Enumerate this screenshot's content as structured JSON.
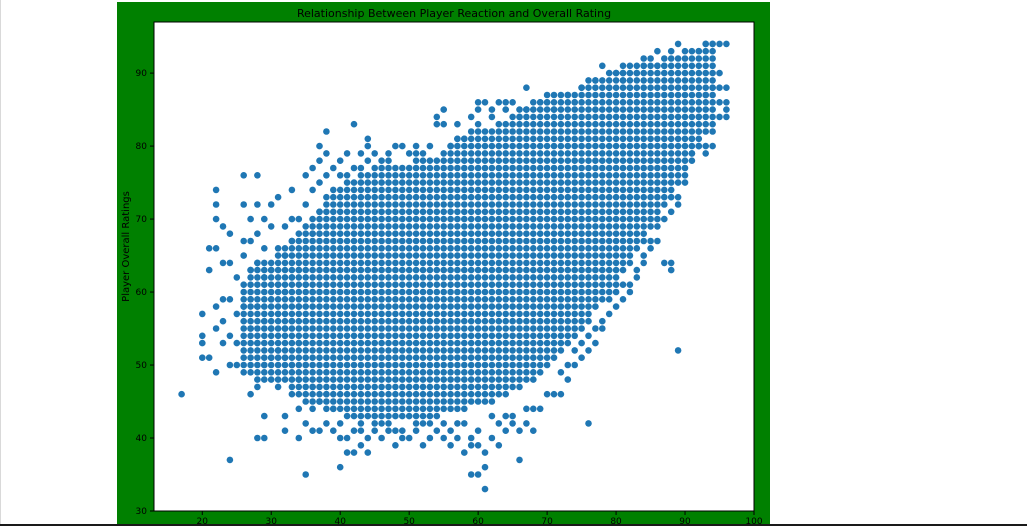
{
  "figure": {
    "background": "#008000"
  },
  "chart_data": {
    "type": "scatter",
    "title": "Relationship Between Player Reaction and Overall Rating",
    "xlabel": "",
    "ylabel": "Player Overall Ratings",
    "xlim": [
      13,
      100
    ],
    "ylim": [
      30,
      97
    ],
    "xticks": [
      20,
      30,
      40,
      50,
      60,
      70,
      80,
      90,
      100
    ],
    "yticks": [
      30,
      40,
      50,
      60,
      70,
      80,
      90
    ],
    "marker_color": "#1f77b4",
    "grid": false,
    "band": [
      [
        26,
        50,
        61
      ],
      [
        28,
        48,
        64
      ],
      [
        30,
        48,
        64
      ],
      [
        32,
        48,
        66
      ],
      [
        34,
        46,
        68
      ],
      [
        36,
        45,
        70
      ],
      [
        38,
        44,
        72
      ],
      [
        40,
        44,
        74
      ],
      [
        42,
        43,
        75
      ],
      [
        44,
        43,
        76
      ],
      [
        46,
        43,
        77
      ],
      [
        48,
        43,
        77
      ],
      [
        50,
        43,
        77
      ],
      [
        52,
        43,
        78
      ],
      [
        54,
        43,
        78
      ],
      [
        56,
        44,
        80
      ],
      [
        58,
        44,
        81
      ],
      [
        60,
        45,
        82
      ],
      [
        62,
        45,
        82
      ],
      [
        64,
        46,
        83
      ],
      [
        66,
        47,
        84
      ],
      [
        68,
        48,
        85
      ],
      [
        70,
        50,
        86
      ],
      [
        72,
        52,
        86
      ],
      [
        74,
        54,
        87
      ],
      [
        76,
        56,
        88
      ],
      [
        78,
        59,
        89
      ],
      [
        80,
        61,
        90
      ],
      [
        82,
        64,
        91
      ],
      [
        84,
        67,
        91
      ],
      [
        86,
        70,
        91
      ],
      [
        88,
        73,
        92
      ],
      [
        90,
        77,
        92
      ],
      [
        92,
        80,
        93
      ],
      [
        94,
        83,
        94
      ]
    ],
    "points": [
      [
        17,
        46
      ],
      [
        20,
        51
      ],
      [
        20,
        53
      ],
      [
        20,
        54
      ],
      [
        20,
        57
      ],
      [
        21,
        51
      ],
      [
        21,
        63
      ],
      [
        21,
        66
      ],
      [
        22,
        49
      ],
      [
        22,
        55
      ],
      [
        22,
        58
      ],
      [
        22,
        66
      ],
      [
        22,
        70
      ],
      [
        22,
        72
      ],
      [
        22,
        74
      ],
      [
        23,
        53
      ],
      [
        23,
        56
      ],
      [
        23,
        59
      ],
      [
        23,
        64
      ],
      [
        23,
        69
      ],
      [
        24,
        37
      ],
      [
        24,
        50
      ],
      [
        24,
        54
      ],
      [
        24,
        59
      ],
      [
        24,
        64
      ],
      [
        24,
        68
      ],
      [
        25,
        50
      ],
      [
        25,
        53
      ],
      [
        25,
        57
      ],
      [
        25,
        62
      ],
      [
        26,
        49
      ],
      [
        26,
        58
      ],
      [
        26,
        65
      ],
      [
        26,
        67
      ],
      [
        26,
        72
      ],
      [
        26,
        76
      ],
      [
        27,
        46
      ],
      [
        27,
        55
      ],
      [
        27,
        59
      ],
      [
        27,
        63
      ],
      [
        27,
        67
      ],
      [
        27,
        70
      ],
      [
        28,
        40
      ],
      [
        28,
        47
      ],
      [
        28,
        53
      ],
      [
        28,
        58
      ],
      [
        28,
        64
      ],
      [
        28,
        68
      ],
      [
        28,
        72
      ],
      [
        28,
        76
      ],
      [
        29,
        40
      ],
      [
        29,
        43
      ],
      [
        29,
        50
      ],
      [
        29,
        56
      ],
      [
        29,
        62
      ],
      [
        29,
        66
      ],
      [
        29,
        70
      ],
      [
        30,
        51
      ],
      [
        30,
        55
      ],
      [
        30,
        59
      ],
      [
        30,
        63
      ],
      [
        30,
        69
      ],
      [
        30,
        72
      ],
      [
        31,
        47
      ],
      [
        31,
        52
      ],
      [
        31,
        57
      ],
      [
        31,
        61
      ],
      [
        31,
        66
      ],
      [
        31,
        73
      ],
      [
        32,
        41
      ],
      [
        32,
        43
      ],
      [
        32,
        51
      ],
      [
        32,
        55
      ],
      [
        32,
        60
      ],
      [
        32,
        65
      ],
      [
        32,
        69
      ],
      [
        33,
        46
      ],
      [
        33,
        50
      ],
      [
        33,
        56
      ],
      [
        33,
        62
      ],
      [
        33,
        67
      ],
      [
        33,
        70
      ],
      [
        33,
        74
      ],
      [
        34,
        40
      ],
      [
        34,
        44
      ],
      [
        34,
        48
      ],
      [
        34,
        53
      ],
      [
        34,
        58
      ],
      [
        34,
        63
      ],
      [
        34,
        70
      ],
      [
        35,
        35
      ],
      [
        35,
        42
      ],
      [
        35,
        45
      ],
      [
        35,
        50
      ],
      [
        35,
        56
      ],
      [
        35,
        61
      ],
      [
        35,
        66
      ],
      [
        35,
        72
      ],
      [
        35,
        76
      ],
      [
        36,
        41
      ],
      [
        36,
        44
      ],
      [
        36,
        47
      ],
      [
        36,
        60
      ],
      [
        36,
        68
      ],
      [
        36,
        74
      ],
      [
        36,
        77
      ],
      [
        37,
        41
      ],
      [
        37,
        45
      ],
      [
        37,
        71
      ],
      [
        37,
        75
      ],
      [
        37,
        78
      ],
      [
        37,
        80
      ],
      [
        38,
        42
      ],
      [
        38,
        46
      ],
      [
        38,
        73
      ],
      [
        38,
        76
      ],
      [
        38,
        79
      ],
      [
        38,
        82
      ],
      [
        39,
        41
      ],
      [
        39,
        44
      ],
      [
        39,
        74
      ],
      [
        39,
        77
      ],
      [
        40,
        36
      ],
      [
        40,
        40
      ],
      [
        40,
        42
      ],
      [
        40,
        76
      ],
      [
        40,
        78
      ],
      [
        41,
        38
      ],
      [
        41,
        40
      ],
      [
        41,
        43
      ],
      [
        41,
        76
      ],
      [
        41,
        79
      ],
      [
        42,
        38
      ],
      [
        42,
        41
      ],
      [
        42,
        77
      ],
      [
        42,
        83
      ],
      [
        43,
        39
      ],
      [
        43,
        41
      ],
      [
        43,
        42
      ],
      [
        43,
        77
      ],
      [
        43,
        79
      ],
      [
        44,
        38
      ],
      [
        44,
        40
      ],
      [
        44,
        78
      ],
      [
        44,
        80
      ],
      [
        44,
        81
      ],
      [
        45,
        41
      ],
      [
        45,
        42
      ],
      [
        45,
        79
      ],
      [
        46,
        40
      ],
      [
        46,
        42
      ],
      [
        46,
        78
      ],
      [
        47,
        41
      ],
      [
        47,
        42
      ],
      [
        47,
        78
      ],
      [
        47,
        79
      ],
      [
        48,
        39
      ],
      [
        48,
        41
      ],
      [
        48,
        80
      ],
      [
        49,
        40
      ],
      [
        49,
        41
      ],
      [
        49,
        80
      ],
      [
        50,
        40
      ],
      [
        50,
        79
      ],
      [
        51,
        41
      ],
      [
        51,
        42
      ],
      [
        51,
        79
      ],
      [
        51,
        80
      ],
      [
        52,
        39
      ],
      [
        52,
        42
      ],
      [
        52,
        79
      ],
      [
        53,
        40
      ],
      [
        53,
        42
      ],
      [
        53,
        80
      ],
      [
        54,
        41
      ],
      [
        54,
        83
      ],
      [
        54,
        84
      ],
      [
        55,
        40
      ],
      [
        55,
        42
      ],
      [
        55,
        83
      ],
      [
        55,
        85
      ],
      [
        56,
        39
      ],
      [
        56,
        41
      ],
      [
        56,
        80
      ],
      [
        57,
        40
      ],
      [
        57,
        42
      ],
      [
        57,
        81
      ],
      [
        57,
        83
      ],
      [
        58,
        38
      ],
      [
        58,
        42
      ],
      [
        58,
        81
      ],
      [
        59,
        35
      ],
      [
        59,
        39
      ],
      [
        59,
        40
      ],
      [
        59,
        84
      ],
      [
        60,
        35
      ],
      [
        60,
        39
      ],
      [
        60,
        41
      ],
      [
        60,
        83
      ],
      [
        60,
        85
      ],
      [
        60,
        86
      ],
      [
        61,
        36
      ],
      [
        61,
        38
      ],
      [
        61,
        33
      ],
      [
        61,
        86
      ],
      [
        62,
        40
      ],
      [
        62,
        43
      ],
      [
        62,
        84
      ],
      [
        62,
        85
      ],
      [
        63,
        39
      ],
      [
        63,
        42
      ],
      [
        63,
        86
      ],
      [
        64,
        41
      ],
      [
        64,
        43
      ],
      [
        64,
        85
      ],
      [
        64,
        86
      ],
      [
        65,
        42
      ],
      [
        65,
        43
      ],
      [
        65,
        86
      ],
      [
        66,
        37
      ],
      [
        66,
        41
      ],
      [
        66,
        84
      ],
      [
        66,
        85
      ],
      [
        67,
        42
      ],
      [
        67,
        44
      ],
      [
        67,
        85
      ],
      [
        67,
        88
      ],
      [
        68,
        41
      ],
      [
        68,
        44
      ],
      [
        68,
        86
      ],
      [
        69,
        44
      ],
      [
        69,
        86
      ],
      [
        70,
        46
      ],
      [
        70,
        86
      ],
      [
        70,
        87
      ],
      [
        71,
        46
      ],
      [
        71,
        85
      ],
      [
        71,
        87
      ],
      [
        72,
        46
      ],
      [
        72,
        49
      ],
      [
        72,
        87
      ],
      [
        73,
        48
      ],
      [
        73,
        50
      ],
      [
        73,
        87
      ],
      [
        74,
        50
      ],
      [
        74,
        52
      ],
      [
        74,
        86
      ],
      [
        75,
        51
      ],
      [
        75,
        53
      ],
      [
        75,
        88
      ],
      [
        76,
        42
      ],
      [
        76,
        52
      ],
      [
        76,
        54
      ],
      [
        76,
        89
      ],
      [
        77,
        53
      ],
      [
        77,
        55
      ],
      [
        77,
        89
      ],
      [
        78,
        55
      ],
      [
        78,
        56
      ],
      [
        78,
        91
      ],
      [
        79,
        57
      ],
      [
        79,
        59
      ],
      [
        79,
        88
      ],
      [
        80,
        58
      ],
      [
        80,
        60
      ],
      [
        80,
        90
      ],
      [
        81,
        59
      ],
      [
        81,
        61
      ],
      [
        81,
        89
      ],
      [
        81,
        90
      ],
      [
        82,
        60
      ],
      [
        82,
        61
      ],
      [
        82,
        88
      ],
      [
        83,
        62
      ],
      [
        83,
        63
      ],
      [
        83,
        90
      ],
      [
        84,
        64
      ],
      [
        84,
        65
      ],
      [
        84,
        91
      ],
      [
        84,
        92
      ],
      [
        85,
        66
      ],
      [
        85,
        67
      ],
      [
        85,
        92
      ],
      [
        86,
        67
      ],
      [
        86,
        69
      ],
      [
        86,
        91
      ],
      [
        86,
        93
      ],
      [
        87,
        64
      ],
      [
        87,
        70
      ],
      [
        87,
        91
      ],
      [
        88,
        63
      ],
      [
        88,
        64
      ],
      [
        88,
        71
      ],
      [
        88,
        93
      ],
      [
        89,
        52
      ],
      [
        89,
        72
      ],
      [
        89,
        73
      ],
      [
        89,
        94
      ],
      [
        90,
        75
      ],
      [
        90,
        76
      ],
      [
        90,
        93
      ],
      [
        91,
        78
      ],
      [
        91,
        79
      ],
      [
        91,
        81
      ],
      [
        92,
        80
      ],
      [
        92,
        82
      ],
      [
        92,
        84
      ],
      [
        92,
        93
      ],
      [
        93,
        79
      ],
      [
        93,
        80
      ],
      [
        93,
        87
      ],
      [
        93,
        94
      ],
      [
        94,
        80
      ],
      [
        94,
        82
      ],
      [
        94,
        88
      ],
      [
        94,
        94
      ],
      [
        95,
        84
      ],
      [
        95,
        86
      ],
      [
        95,
        88
      ],
      [
        95,
        90
      ],
      [
        95,
        94
      ],
      [
        96,
        84
      ],
      [
        96,
        85
      ],
      [
        96,
        86
      ],
      [
        96,
        88
      ],
      [
        96,
        94
      ]
    ]
  }
}
